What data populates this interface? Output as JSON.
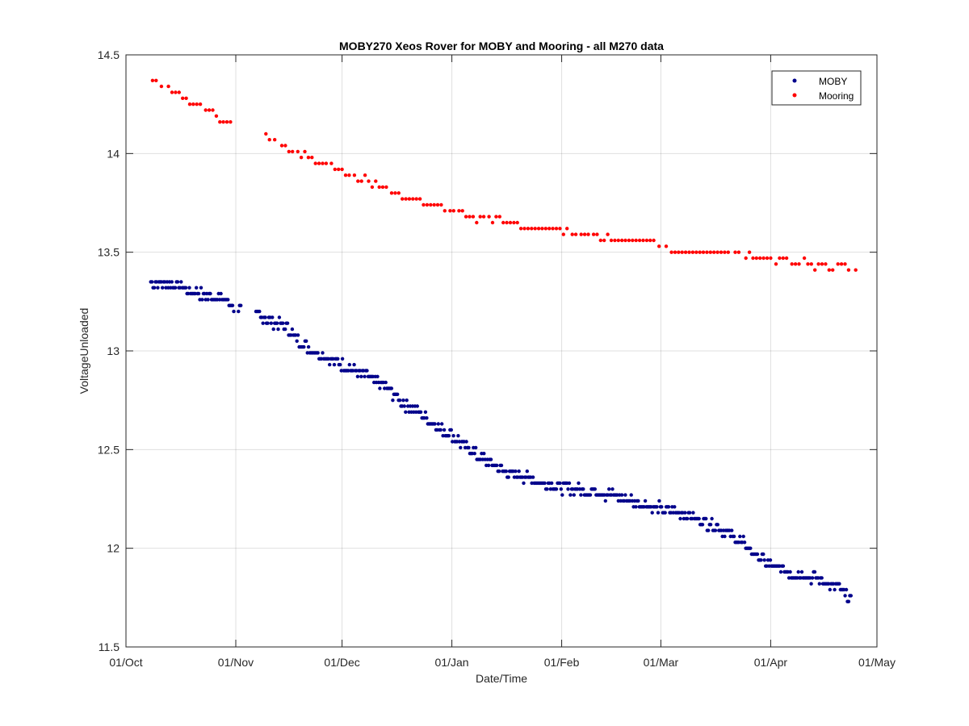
{
  "chart_data": {
    "type": "scatter",
    "title": "MOBY270 Xeos Rover for MOBY and Mooring - all M270 data",
    "xlabel": "Date/Time",
    "ylabel": "VoltageUnloaded",
    "x_units": "days since 01/Oct",
    "xlim": [
      0,
      212
    ],
    "ylim": [
      11.5,
      14.5
    ],
    "x_ticks": [
      {
        "value": 0,
        "label": "01/Oct"
      },
      {
        "value": 31,
        "label": "01/Nov"
      },
      {
        "value": 61,
        "label": "01/Dec"
      },
      {
        "value": 92,
        "label": "01/Jan"
      },
      {
        "value": 123,
        "label": "01/Feb"
      },
      {
        "value": 151,
        "label": "01/Mar"
      },
      {
        "value": 182,
        "label": "01/Apr"
      },
      {
        "value": 212,
        "label": "01/May"
      }
    ],
    "y_ticks": [
      {
        "value": 11.5,
        "label": "11.5"
      },
      {
        "value": 12,
        "label": "12"
      },
      {
        "value": 12.5,
        "label": "12.5"
      },
      {
        "value": 13,
        "label": "13"
      },
      {
        "value": 13.5,
        "label": "13.5"
      },
      {
        "value": 14,
        "label": "14"
      },
      {
        "value": 14.5,
        "label": "14.5"
      }
    ],
    "grid": true,
    "legend_position": "top-right",
    "series": [
      {
        "name": "MOBY",
        "color": "#00008b",
        "anchors": [
          [
            7,
            13.35
          ],
          [
            15,
            13.33
          ],
          [
            22,
            13.28
          ],
          [
            28,
            13.26
          ],
          [
            31,
            13.22
          ],
          [
            37,
            13.18
          ],
          [
            45,
            13.12
          ],
          [
            50,
            13.03
          ],
          [
            56,
            12.97
          ],
          [
            61,
            12.93
          ],
          [
            67,
            12.88
          ],
          [
            73,
            12.82
          ],
          [
            78,
            12.74
          ],
          [
            83,
            12.68
          ],
          [
            87,
            12.63
          ],
          [
            92,
            12.57
          ],
          [
            97,
            12.5
          ],
          [
            102,
            12.44
          ],
          [
            107,
            12.39
          ],
          [
            112,
            12.36
          ],
          [
            117,
            12.34
          ],
          [
            123,
            12.31
          ],
          [
            130,
            12.29
          ],
          [
            137,
            12.27
          ],
          [
            143,
            12.24
          ],
          [
            151,
            12.2
          ],
          [
            158,
            12.17
          ],
          [
            165,
            12.12
          ],
          [
            170,
            12.07
          ],
          [
            174,
            12.03
          ],
          [
            178,
            11.96
          ],
          [
            182,
            11.91
          ],
          [
            189,
            11.87
          ],
          [
            196,
            11.84
          ],
          [
            201,
            11.8
          ],
          [
            205,
            11.73
          ]
        ],
        "note": "dense series: ~3 readings per day between 07/Oct and 26/Apr, scatter +/-0.03 V around the trend"
      },
      {
        "name": "Mooring",
        "color": "#ff0000",
        "points": [
          [
            7.5,
            14.37
          ],
          [
            8.5,
            14.37
          ],
          [
            10,
            14.34
          ],
          [
            12,
            14.34
          ],
          [
            13,
            14.31
          ],
          [
            14,
            14.31
          ],
          [
            15,
            14.31
          ],
          [
            16,
            14.28
          ],
          [
            17,
            14.28
          ],
          [
            18,
            14.25
          ],
          [
            19,
            14.25
          ],
          [
            20,
            14.25
          ],
          [
            21,
            14.25
          ],
          [
            22.5,
            14.22
          ],
          [
            23.5,
            14.22
          ],
          [
            24.5,
            14.22
          ],
          [
            25.5,
            14.19
          ],
          [
            26.5,
            14.16
          ],
          [
            27.5,
            14.16
          ],
          [
            28.5,
            14.16
          ],
          [
            29.5,
            14.16
          ],
          [
            39.5,
            14.1
          ],
          [
            40.5,
            14.07
          ],
          [
            42,
            14.07
          ],
          [
            44,
            14.04
          ],
          [
            45,
            14.04
          ],
          [
            46,
            14.01
          ],
          [
            47,
            14.01
          ],
          [
            48.5,
            14.01
          ],
          [
            49.5,
            13.98
          ],
          [
            50.5,
            14.01
          ],
          [
            51.5,
            13.98
          ],
          [
            52.5,
            13.98
          ],
          [
            53.5,
            13.95
          ],
          [
            54.5,
            13.95
          ],
          [
            55.5,
            13.95
          ],
          [
            56.5,
            13.95
          ],
          [
            58,
            13.95
          ],
          [
            59,
            13.92
          ],
          [
            60,
            13.92
          ],
          [
            61,
            13.92
          ],
          [
            62,
            13.89
          ],
          [
            63,
            13.89
          ],
          [
            64.5,
            13.89
          ],
          [
            65.5,
            13.86
          ],
          [
            66.5,
            13.86
          ],
          [
            67.5,
            13.89
          ],
          [
            68.5,
            13.86
          ],
          [
            69.5,
            13.83
          ],
          [
            70.5,
            13.86
          ],
          [
            71.5,
            13.83
          ],
          [
            72.5,
            13.83
          ],
          [
            73.5,
            13.83
          ],
          [
            75,
            13.8
          ],
          [
            76,
            13.8
          ],
          [
            77,
            13.8
          ],
          [
            78,
            13.77
          ],
          [
            79,
            13.77
          ],
          [
            80,
            13.77
          ],
          [
            81,
            13.77
          ],
          [
            82,
            13.77
          ],
          [
            83,
            13.77
          ],
          [
            84,
            13.74
          ],
          [
            85,
            13.74
          ],
          [
            86,
            13.74
          ],
          [
            87,
            13.74
          ],
          [
            88,
            13.74
          ],
          [
            89,
            13.74
          ],
          [
            90,
            13.71
          ],
          [
            91.5,
            13.71
          ],
          [
            92.5,
            13.71
          ],
          [
            94,
            13.71
          ],
          [
            95,
            13.71
          ],
          [
            96,
            13.68
          ],
          [
            97,
            13.68
          ],
          [
            98,
            13.68
          ],
          [
            99,
            13.65
          ],
          [
            100,
            13.68
          ],
          [
            101,
            13.68
          ],
          [
            102.5,
            13.68
          ],
          [
            103.5,
            13.65
          ],
          [
            104.5,
            13.68
          ],
          [
            105.5,
            13.68
          ],
          [
            106.5,
            13.65
          ],
          [
            107.5,
            13.65
          ],
          [
            108.5,
            13.65
          ],
          [
            109.5,
            13.65
          ],
          [
            110.5,
            13.65
          ],
          [
            111.5,
            13.62
          ],
          [
            112.5,
            13.62
          ],
          [
            113.5,
            13.62
          ],
          [
            114.5,
            13.62
          ],
          [
            115.5,
            13.62
          ],
          [
            116.5,
            13.62
          ],
          [
            117.5,
            13.62
          ],
          [
            118.5,
            13.62
          ],
          [
            119.5,
            13.62
          ],
          [
            120.5,
            13.62
          ],
          [
            121.5,
            13.62
          ],
          [
            122.5,
            13.62
          ],
          [
            123.5,
            13.59
          ],
          [
            124.5,
            13.62
          ],
          [
            126,
            13.59
          ],
          [
            127,
            13.59
          ],
          [
            128.5,
            13.59
          ],
          [
            129.5,
            13.59
          ],
          [
            130.5,
            13.59
          ],
          [
            132,
            13.59
          ],
          [
            133,
            13.59
          ],
          [
            134,
            13.56
          ],
          [
            135,
            13.56
          ],
          [
            136,
            13.59
          ],
          [
            137,
            13.56
          ],
          [
            138,
            13.56
          ],
          [
            139,
            13.56
          ],
          [
            140,
            13.56
          ],
          [
            141,
            13.56
          ],
          [
            142,
            13.56
          ],
          [
            143,
            13.56
          ],
          [
            144,
            13.56
          ],
          [
            145,
            13.56
          ],
          [
            146,
            13.56
          ],
          [
            147,
            13.56
          ],
          [
            148,
            13.56
          ],
          [
            149,
            13.56
          ],
          [
            150.5,
            13.53
          ],
          [
            152.5,
            13.53
          ],
          [
            154,
            13.5
          ],
          [
            155,
            13.5
          ],
          [
            156,
            13.5
          ],
          [
            157,
            13.5
          ],
          [
            158,
            13.5
          ],
          [
            159,
            13.5
          ],
          [
            160,
            13.5
          ],
          [
            161,
            13.5
          ],
          [
            162,
            13.5
          ],
          [
            163,
            13.5
          ],
          [
            164,
            13.5
          ],
          [
            165,
            13.5
          ],
          [
            166,
            13.5
          ],
          [
            167,
            13.5
          ],
          [
            168,
            13.5
          ],
          [
            169,
            13.5
          ],
          [
            170,
            13.5
          ],
          [
            172,
            13.5
          ],
          [
            173,
            13.5
          ],
          [
            175,
            13.47
          ],
          [
            176,
            13.5
          ],
          [
            177,
            13.47
          ],
          [
            178,
            13.47
          ],
          [
            179,
            13.47
          ],
          [
            180,
            13.47
          ],
          [
            181,
            13.47
          ],
          [
            182,
            13.47
          ],
          [
            183.5,
            13.44
          ],
          [
            184.5,
            13.47
          ],
          [
            185.5,
            13.47
          ],
          [
            186.5,
            13.47
          ],
          [
            188,
            13.44
          ],
          [
            189,
            13.44
          ],
          [
            190,
            13.44
          ],
          [
            191.5,
            13.47
          ],
          [
            192.5,
            13.44
          ],
          [
            193.5,
            13.44
          ],
          [
            194.5,
            13.41
          ],
          [
            195.5,
            13.44
          ],
          [
            196.5,
            13.44
          ],
          [
            197.5,
            13.44
          ],
          [
            198.5,
            13.41
          ],
          [
            199.5,
            13.41
          ],
          [
            201,
            13.44
          ],
          [
            202,
            13.44
          ],
          [
            203,
            13.44
          ],
          [
            204,
            13.41
          ],
          [
            206,
            13.41
          ]
        ]
      }
    ]
  }
}
